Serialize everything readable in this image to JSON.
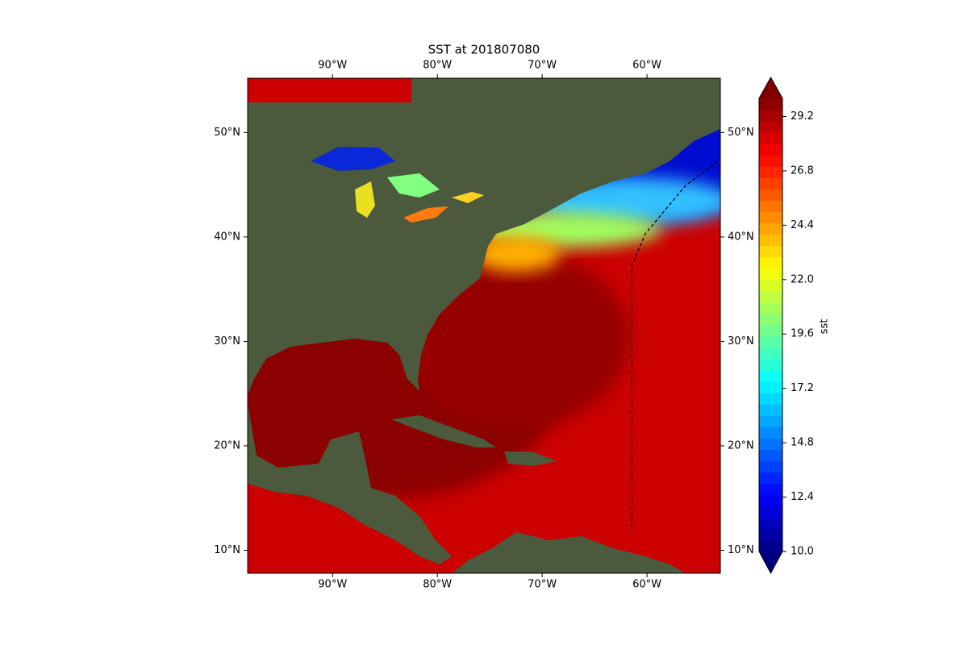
{
  "chart_data": {
    "type": "map",
    "title": "SST at 201807080",
    "xlim": [
      -98.1,
      -53.0
    ],
    "ylim": [
      7.8,
      55.2
    ],
    "xticks": [
      {
        "value": -90,
        "label": "90°W"
      },
      {
        "value": -80,
        "label": "80°W"
      },
      {
        "value": -70,
        "label": "70°W"
      },
      {
        "value": -60,
        "label": "60°W"
      }
    ],
    "yticks": [
      {
        "value": 10,
        "label": "10°N"
      },
      {
        "value": 20,
        "label": "20°N"
      },
      {
        "value": 30,
        "label": "30°N"
      },
      {
        "value": 40,
        "label": "40°N"
      },
      {
        "value": 50,
        "label": "50°N"
      }
    ],
    "colorbar": {
      "label": "sst",
      "colormap": "jet",
      "lim": [
        10,
        30
      ],
      "ticks": [
        {
          "value": 10,
          "label": "10.0"
        },
        12.4,
        14.8,
        17.2,
        19.6,
        {
          "value": 22,
          "label": "22.0"
        },
        24.4,
        26.8,
        29.2
      ]
    }
  }
}
